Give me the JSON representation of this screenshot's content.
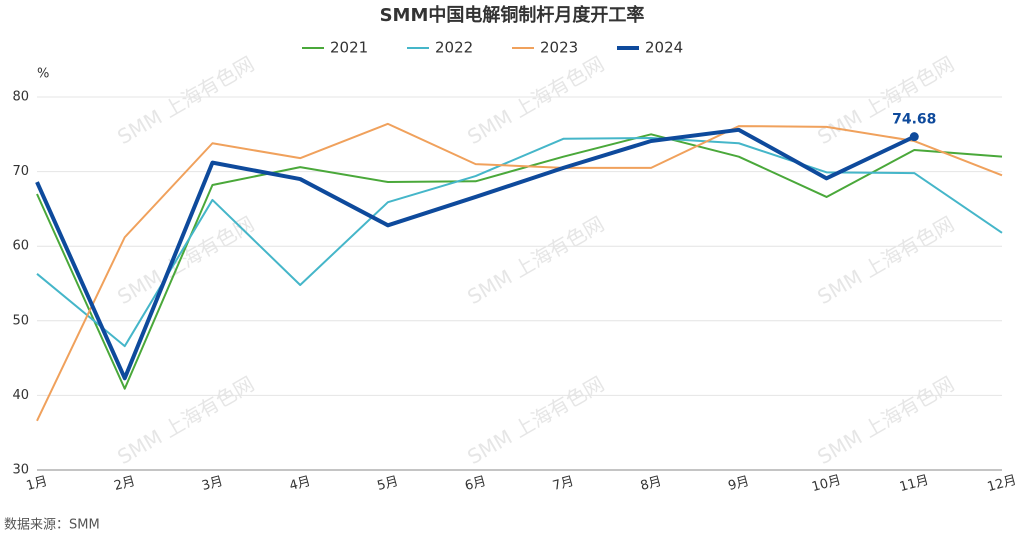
{
  "chart_data": {
    "type": "line",
    "title": "SMM中国电解铜制杆月度开工率",
    "y_unit": "%",
    "source": "数据来源：SMM",
    "watermark": "SMM 上海有色网",
    "categories": [
      "1月",
      "2月",
      "3月",
      "4月",
      "5月",
      "6月",
      "7月",
      "8月",
      "9月",
      "10月",
      "11月",
      "12月"
    ],
    "series": [
      {
        "name": "2021",
        "color": "#4aa83a",
        "width": 2,
        "values": [
          67.0,
          40.9,
          68.2,
          70.6,
          68.6,
          68.7,
          72.0,
          75.0,
          72.0,
          66.6,
          72.9,
          72.0
        ]
      },
      {
        "name": "2022",
        "color": "#45b6c9",
        "width": 2,
        "values": [
          56.3,
          46.6,
          66.2,
          54.8,
          65.9,
          69.4,
          74.4,
          74.5,
          73.8,
          69.9,
          69.8,
          61.8
        ]
      },
      {
        "name": "2023",
        "color": "#f0a15c",
        "width": 2,
        "values": [
          36.6,
          61.2,
          73.8,
          71.8,
          76.4,
          71.0,
          70.5,
          70.5,
          76.1,
          76.0,
          74.1,
          69.5
        ]
      },
      {
        "name": "2024",
        "color": "#0e4a9c",
        "width": 4,
        "values": [
          68.6,
          42.3,
          71.2,
          69.0,
          62.8,
          66.6,
          70.5,
          74.1,
          75.6,
          69.1,
          74.68,
          null
        ]
      }
    ],
    "ylim": [
      30,
      80
    ],
    "yticks": [
      30,
      40,
      50,
      60,
      70,
      80
    ],
    "grid": true,
    "legend": "top"
  }
}
